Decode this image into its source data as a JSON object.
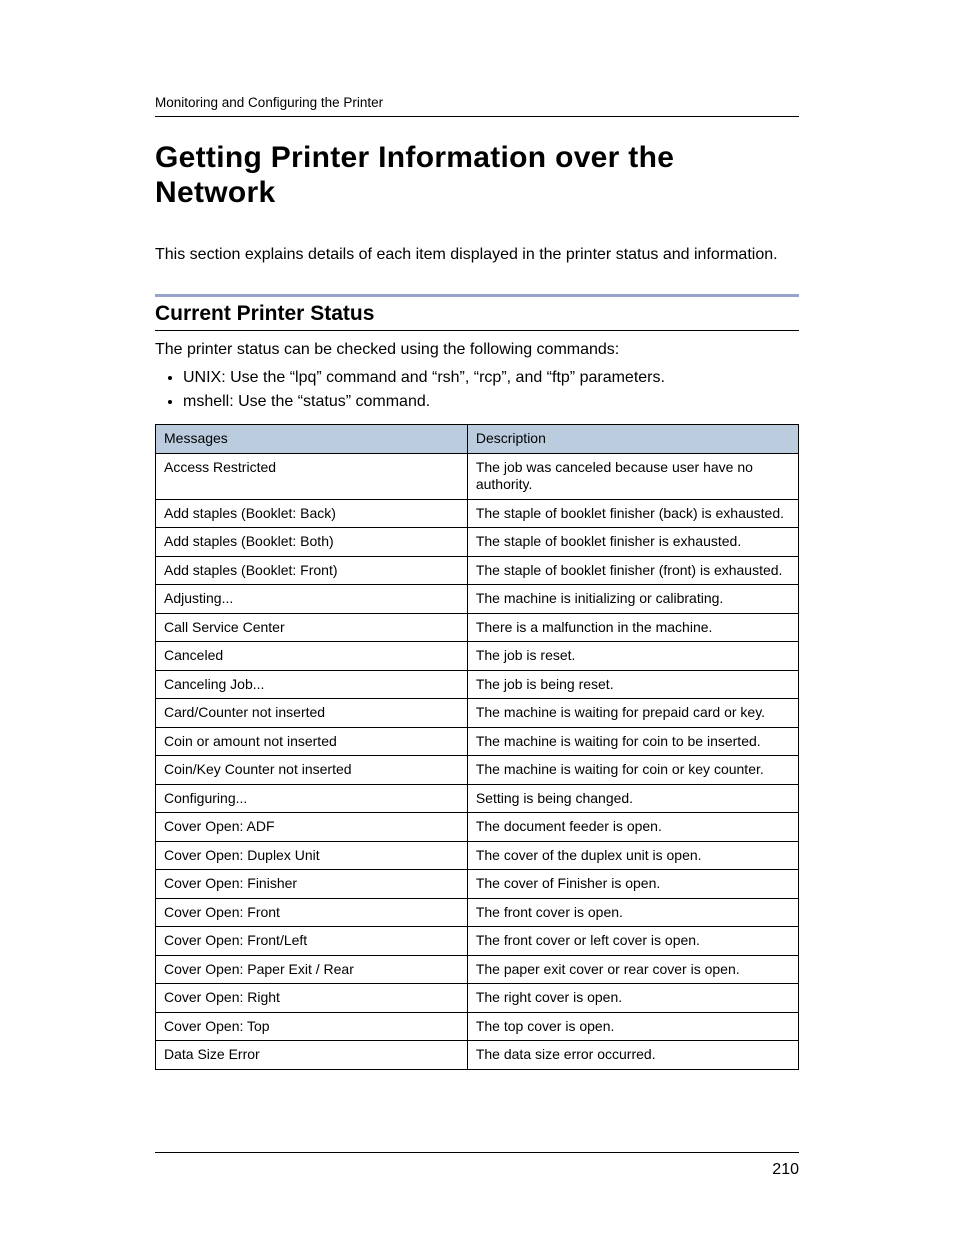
{
  "header": {
    "running": "Monitoring and Configuring the Printer"
  },
  "title": "Getting Printer Information over the Network",
  "intro": "This section explains details of each item displayed in the printer status and information.",
  "section": {
    "heading": "Current Printer Status",
    "lead": "The printer status can be checked using the following commands:",
    "bullets": [
      "UNIX: Use the “lpq” command and “rsh”, “rcp”, and “ftp” parameters.",
      "mshell: Use the “status” command."
    ]
  },
  "table": {
    "columns": [
      "Messages",
      "Description"
    ],
    "col_widths_pct": [
      48.5,
      51.5
    ],
    "header_bg": "#bcccdf",
    "border_color": "#000000",
    "font_size_pt": 10.5,
    "rows": [
      [
        "Access Restricted",
        "The job was canceled because user have no authority."
      ],
      [
        "Add staples (Booklet: Back)",
        "The staple of booklet finisher (back) is exhausted."
      ],
      [
        "Add staples (Booklet: Both)",
        "The staple of booklet finisher is exhausted."
      ],
      [
        "Add staples (Booklet: Front)",
        "The staple of booklet finisher (front) is exhausted."
      ],
      [
        "Adjusting...",
        "The machine is initializing or calibrating."
      ],
      [
        "Call Service Center",
        "There is a malfunction in the machine."
      ],
      [
        "Canceled",
        "The job is reset."
      ],
      [
        "Canceling Job...",
        "The job is being reset."
      ],
      [
        "Card/Counter not inserted",
        "The machine is waiting for prepaid card or key."
      ],
      [
        "Coin or amount not inserted",
        "The machine is waiting for coin to be inserted."
      ],
      [
        "Coin/Key Counter not inserted",
        "The machine is waiting for coin or key counter."
      ],
      [
        "Configuring...",
        "Setting is being changed."
      ],
      [
        "Cover Open: ADF",
        "The document feeder is open."
      ],
      [
        "Cover Open: Duplex Unit",
        "The cover of the duplex unit is open."
      ],
      [
        "Cover Open: Finisher",
        "The cover of Finisher is open."
      ],
      [
        "Cover Open: Front",
        "The front cover is open."
      ],
      [
        "Cover Open: Front/Left",
        "The front cover or left cover is open."
      ],
      [
        "Cover Open: Paper Exit / Rear",
        "The paper exit cover or rear cover is open."
      ],
      [
        "Cover Open: Right",
        "The right cover is open."
      ],
      [
        "Cover Open: Top",
        "The top cover is open."
      ],
      [
        "Data Size Error",
        "The data size error occurred."
      ]
    ]
  },
  "page_number": "210",
  "style": {
    "accent_rule_color": "#98a3c9",
    "title_font": "Century Gothic",
    "body_font": "Arial",
    "title_fontsize_pt": 22,
    "section_fontsize_pt": 16,
    "body_fontsize_pt": 12,
    "background": "#ffffff",
    "text_color": "#000000"
  }
}
